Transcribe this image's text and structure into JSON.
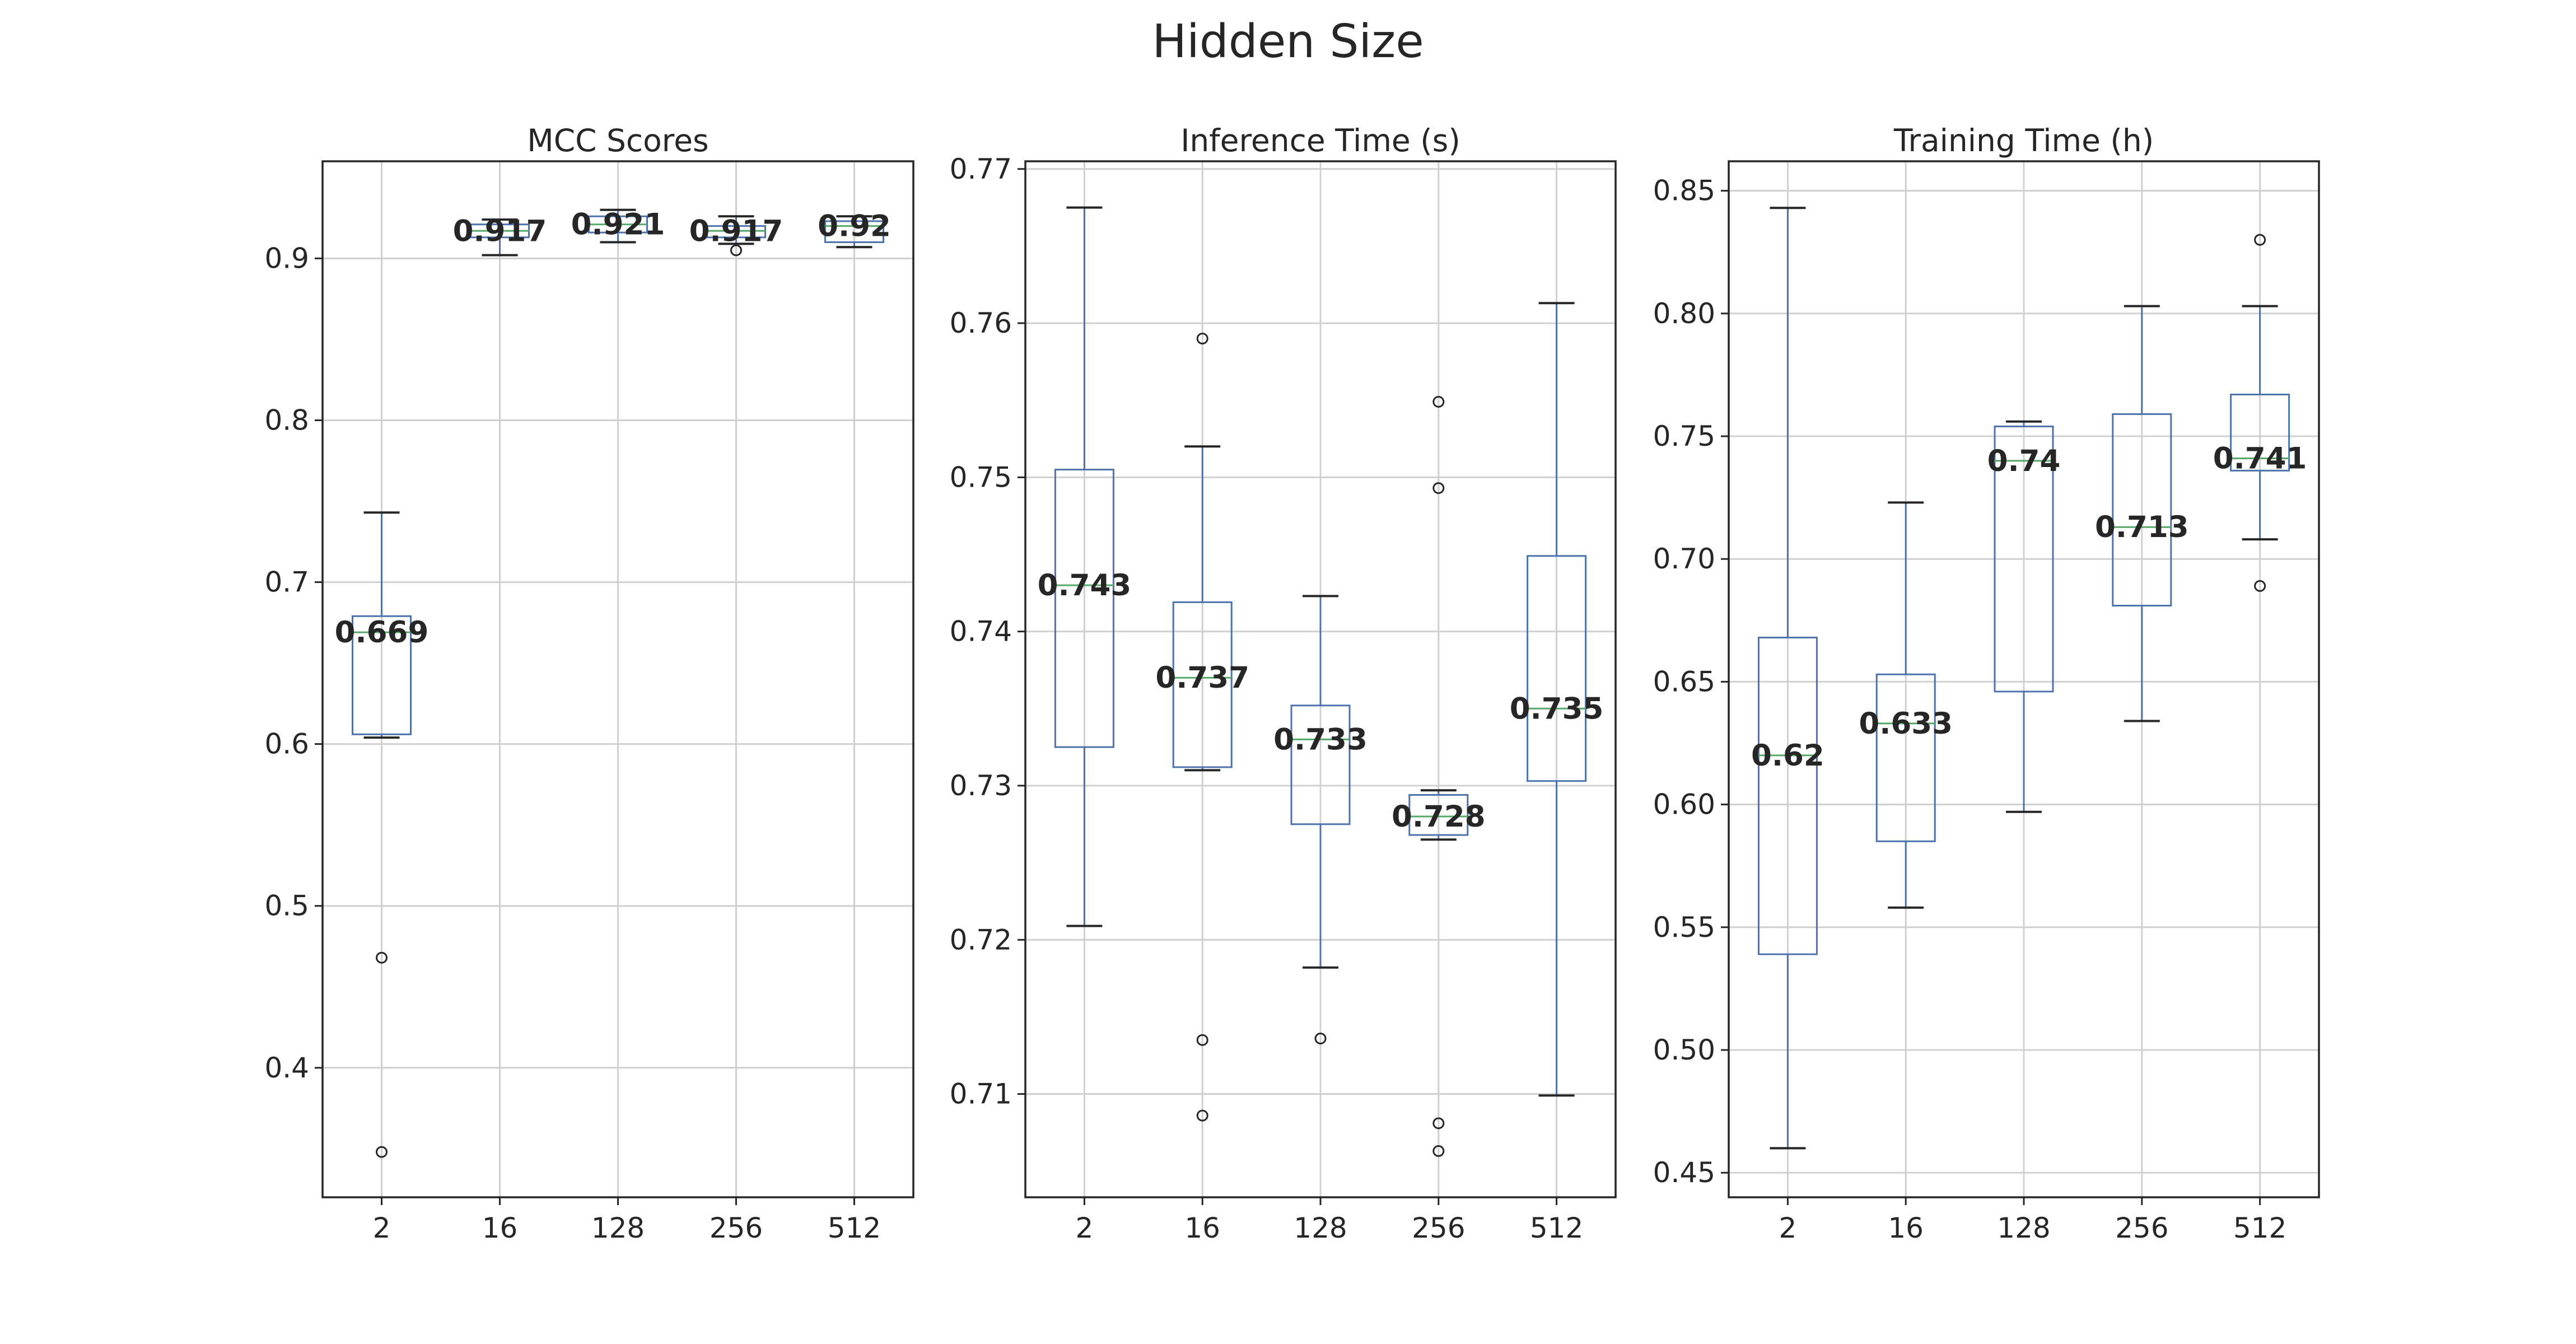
{
  "figure": {
    "title": "Hidden Size"
  },
  "chart_data": [
    {
      "type": "box",
      "title": "MCC Scores",
      "categories": [
        "2",
        "16",
        "128",
        "256",
        "512"
      ],
      "ylim": [
        0.32,
        0.96
      ],
      "yticks": [
        0.4,
        0.5,
        0.6,
        0.7,
        0.8,
        0.9
      ],
      "ytick_labels": [
        "0.4",
        "0.5",
        "0.6",
        "0.7",
        "0.8",
        "0.9"
      ],
      "grid": true,
      "boxes": [
        {
          "whislo": 0.604,
          "q1": 0.606,
          "med": 0.669,
          "q3": 0.679,
          "whishi": 0.743,
          "fliers": [
            0.468,
            0.348
          ],
          "label": "0.669"
        },
        {
          "whislo": 0.902,
          "q1": 0.913,
          "med": 0.917,
          "q3": 0.921,
          "whishi": 0.924,
          "fliers": [],
          "label": "0.917"
        },
        {
          "whislo": 0.91,
          "q1": 0.916,
          "med": 0.921,
          "q3": 0.926,
          "whishi": 0.93,
          "fliers": [],
          "label": "0.921"
        },
        {
          "whislo": 0.909,
          "q1": 0.913,
          "med": 0.917,
          "q3": 0.92,
          "whishi": 0.926,
          "fliers": [
            0.905
          ],
          "label": "0.917"
        },
        {
          "whislo": 0.907,
          "q1": 0.91,
          "med": 0.92,
          "q3": 0.923,
          "whishi": 0.926,
          "fliers": [],
          "label": "0.92"
        }
      ]
    },
    {
      "type": "box",
      "title": "Inference Time (s)",
      "categories": [
        "2",
        "16",
        "128",
        "256",
        "512"
      ],
      "ylim": [
        0.7033,
        0.7705
      ],
      "yticks": [
        0.71,
        0.72,
        0.73,
        0.74,
        0.75,
        0.76,
        0.77
      ],
      "ytick_labels": [
        "0.71",
        "0.72",
        "0.73",
        "0.74",
        "0.75",
        "0.76",
        "0.77"
      ],
      "grid": true,
      "boxes": [
        {
          "whislo": 0.7209,
          "q1": 0.7325,
          "med": 0.743,
          "q3": 0.7505,
          "whishi": 0.7675,
          "fliers": [],
          "label": "0.743"
        },
        {
          "whislo": 0.731,
          "q1": 0.7312,
          "med": 0.737,
          "q3": 0.7419,
          "whishi": 0.752,
          "fliers": [
            0.759,
            0.7135,
            0.7086
          ],
          "label": "0.737"
        },
        {
          "whislo": 0.7182,
          "q1": 0.7275,
          "med": 0.733,
          "q3": 0.7352,
          "whishi": 0.7423,
          "fliers": [
            0.7136
          ],
          "label": "0.733"
        },
        {
          "whislo": 0.7265,
          "q1": 0.7268,
          "med": 0.728,
          "q3": 0.7294,
          "whishi": 0.7297,
          "fliers": [
            0.7549,
            0.7493,
            0.7081,
            0.7063
          ],
          "label": "0.728"
        },
        {
          "whislo": 0.7099,
          "q1": 0.7303,
          "med": 0.735,
          "q3": 0.7449,
          "whishi": 0.7613,
          "fliers": [],
          "label": "0.735"
        }
      ]
    },
    {
      "type": "box",
      "title": "Training Time (h)",
      "categories": [
        "2",
        "16",
        "128",
        "256",
        "512"
      ],
      "ylim": [
        0.44,
        0.862
      ],
      "yticks": [
        0.45,
        0.5,
        0.55,
        0.6,
        0.65,
        0.7,
        0.75,
        0.8,
        0.85
      ],
      "ytick_labels": [
        "0.45",
        "0.50",
        "0.55",
        "0.60",
        "0.65",
        "0.70",
        "0.75",
        "0.80",
        "0.85"
      ],
      "grid": true,
      "boxes": [
        {
          "whislo": 0.46,
          "q1": 0.539,
          "med": 0.62,
          "q3": 0.668,
          "whishi": 0.843,
          "fliers": [],
          "label": "0.62"
        },
        {
          "whislo": 0.558,
          "q1": 0.585,
          "med": 0.633,
          "q3": 0.653,
          "whishi": 0.723,
          "fliers": [],
          "label": "0.633"
        },
        {
          "whislo": 0.597,
          "q1": 0.646,
          "med": 0.74,
          "q3": 0.754,
          "whishi": 0.756,
          "fliers": [],
          "label": "0.74"
        },
        {
          "whislo": 0.634,
          "q1": 0.681,
          "med": 0.713,
          "q3": 0.759,
          "whishi": 0.803,
          "fliers": [],
          "label": "0.713"
        },
        {
          "whislo": 0.708,
          "q1": 0.736,
          "med": 0.741,
          "q3": 0.767,
          "whishi": 0.803,
          "fliers": [
            0.83,
            0.689
          ],
          "label": "0.741"
        }
      ]
    }
  ]
}
